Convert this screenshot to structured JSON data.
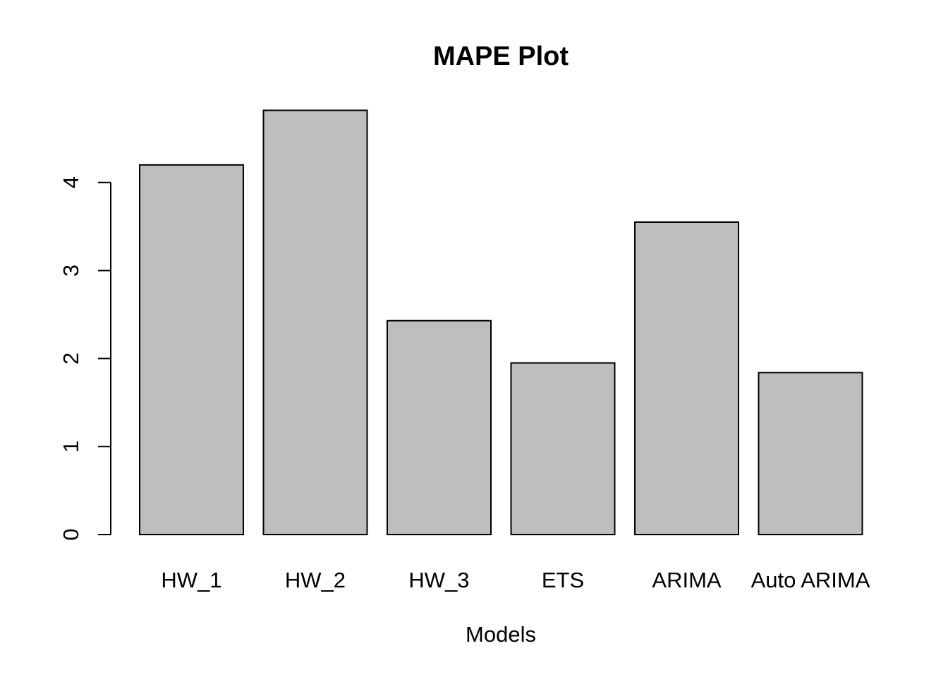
{
  "chart_data": {
    "type": "bar",
    "title": "MAPE Plot",
    "xlabel": "Models",
    "ylabel": "",
    "categories": [
      "HW_1",
      "HW_2",
      "HW_3",
      "ETS",
      "ARIMA",
      "Auto ARIMA"
    ],
    "values": [
      4.2,
      4.82,
      2.43,
      1.95,
      3.55,
      1.84
    ],
    "ylim": [
      0,
      4.9
    ],
    "yticks": [
      0,
      1,
      2,
      3,
      4
    ],
    "grid": false,
    "legend": "none",
    "colors": {
      "bar_fill": "#bebebe",
      "bar_stroke": "#000000",
      "axis": "#000000"
    }
  }
}
